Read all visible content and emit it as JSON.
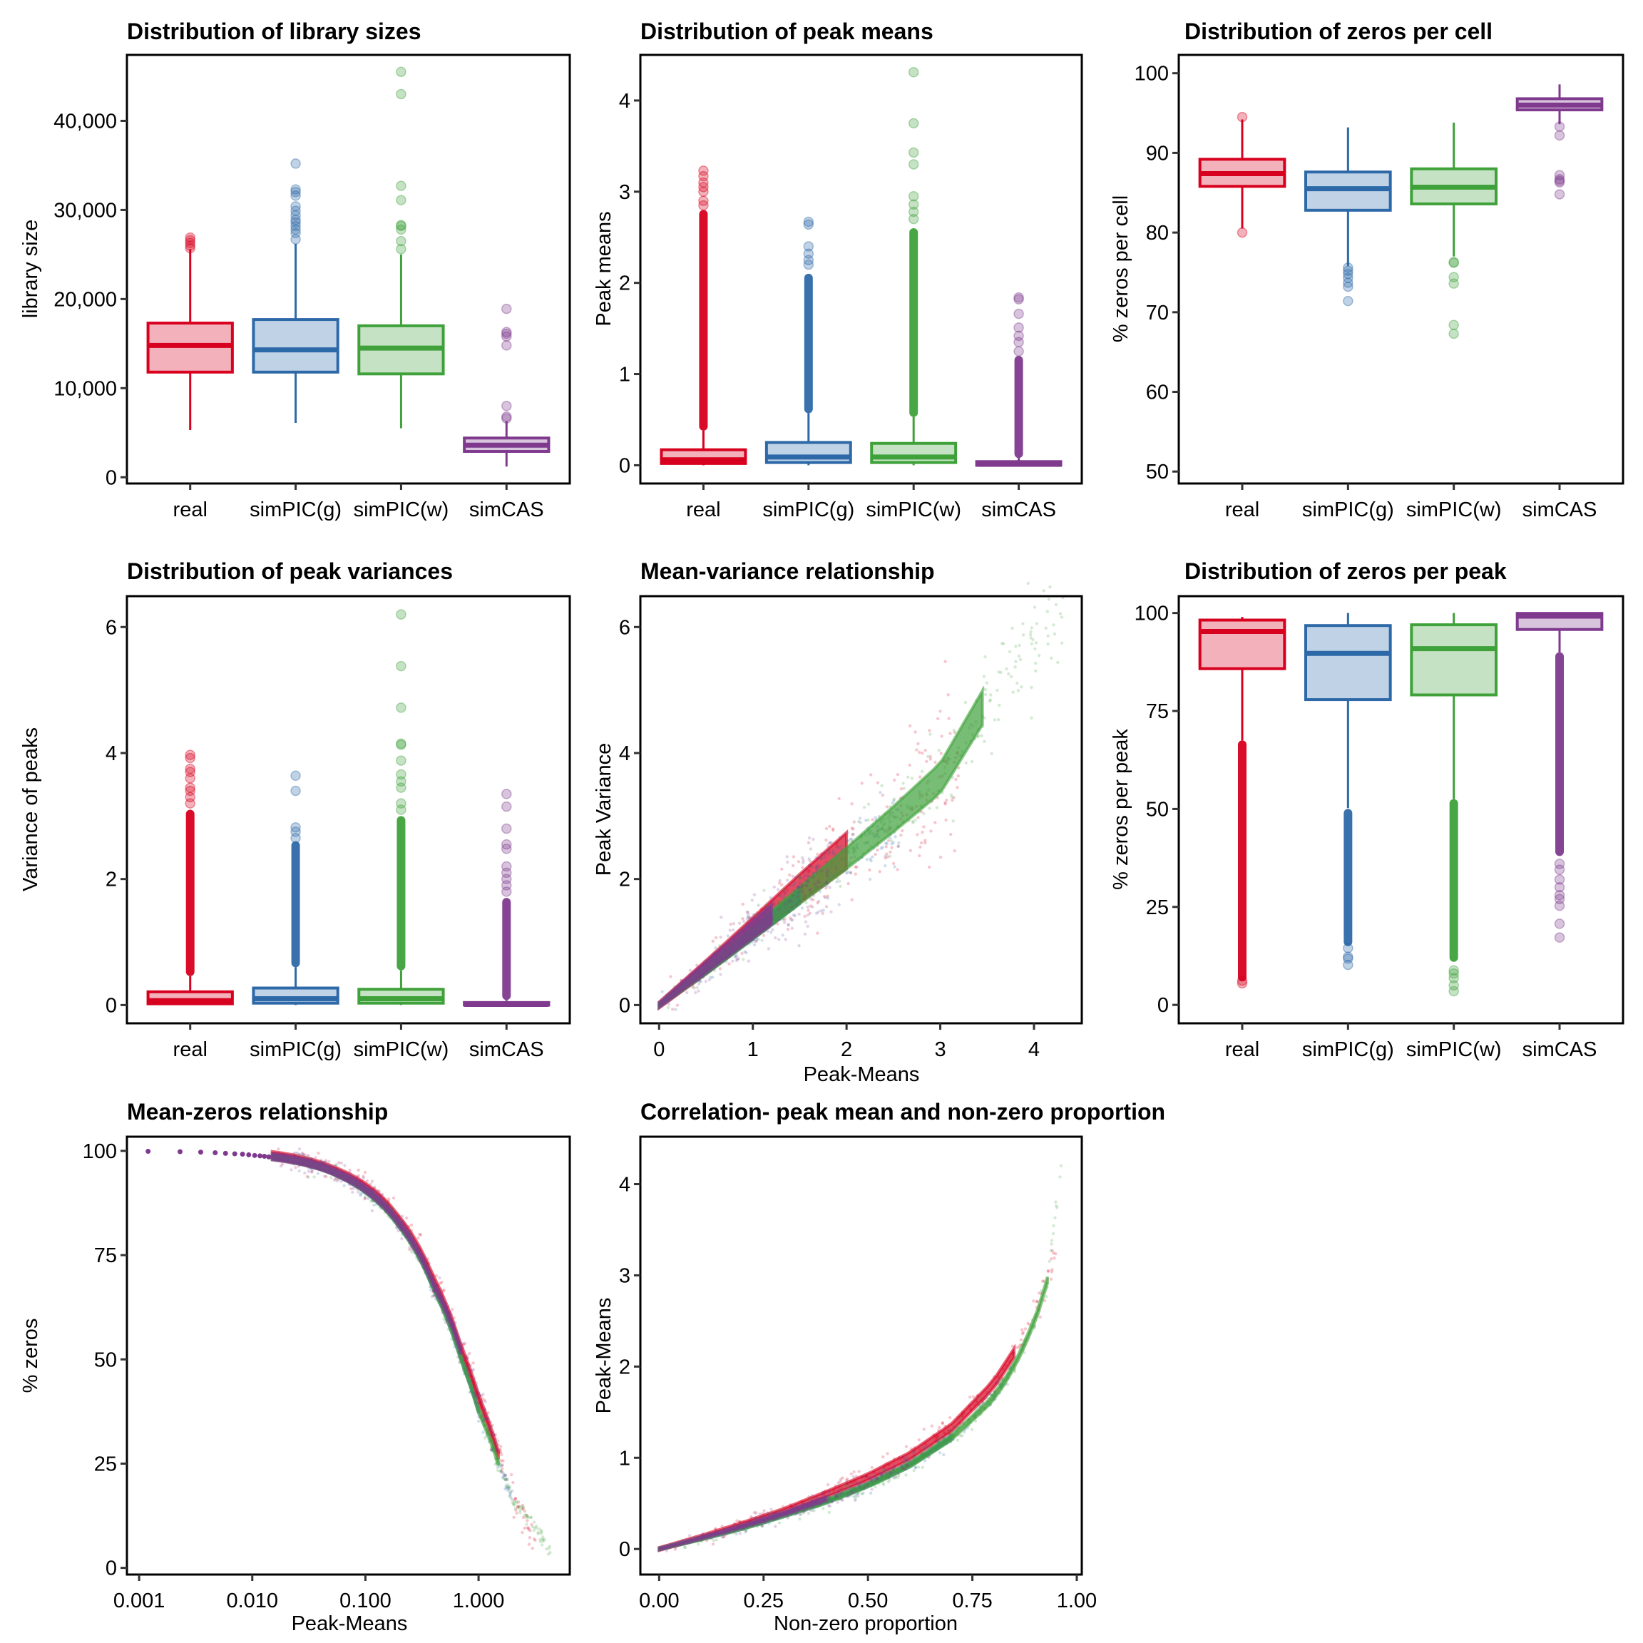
{
  "figure": {
    "colors": {
      "real": "#D7001F",
      "simPIC(g)": "#2D69A8",
      "simPIC(w)": "#3FA13A",
      "simCAS": "#7F3A8E"
    }
  },
  "chart_data": [
    {
      "id": "library-sizes",
      "type": "box",
      "title": "Distribution of library sizes",
      "xlabel": "",
      "ylabel": "library size",
      "categories": [
        "real",
        "simPIC(g)",
        "simPIC(w)",
        "simCAS"
      ],
      "yticks": [
        0,
        10000,
        20000,
        30000,
        40000
      ],
      "ytick_labels": [
        "0",
        "10,000",
        "20,000",
        "30,000",
        "40,000"
      ],
      "ylim": [
        -700,
        47400
      ],
      "boxes": [
        {
          "category": "real",
          "lower_whisker": 5300,
          "q1": 11800,
          "median": 14800,
          "q3": 17300,
          "upper_whisker": 25600,
          "outliers": [
            25700,
            26000,
            26300,
            26600,
            26900
          ]
        },
        {
          "category": "simPIC(g)",
          "lower_whisker": 6100,
          "q1": 11800,
          "median": 14300,
          "q3": 17700,
          "upper_whisker": 26200,
          "outliers": [
            26700,
            27400,
            27800,
            28200,
            28600,
            28900,
            29400,
            29900,
            30400,
            31600,
            32000,
            32300,
            35200
          ]
        },
        {
          "category": "simPIC(w)",
          "lower_whisker": 5500,
          "q1": 11600,
          "median": 14500,
          "q3": 17000,
          "upper_whisker": 25000,
          "outliers": [
            25600,
            26500,
            27800,
            28200,
            28300,
            31100,
            32700,
            43000,
            45500
          ]
        },
        {
          "category": "simCAS",
          "lower_whisker": 1200,
          "q1": 2900,
          "median": 3600,
          "q3": 4400,
          "upper_whisker": 6300,
          "outliers": [
            6600,
            6800,
            8000,
            14800,
            15800,
            16100,
            16300,
            18900
          ]
        }
      ]
    },
    {
      "id": "peak-means",
      "type": "box",
      "title": "Distribution of peak means",
      "xlabel": "",
      "ylabel": "Peak means",
      "categories": [
        "real",
        "simPIC(g)",
        "simPIC(w)",
        "simCAS"
      ],
      "yticks": [
        0,
        1,
        2,
        3,
        4
      ],
      "ytick_labels": [
        "0",
        "1",
        "2",
        "3",
        "4"
      ],
      "ylim": [
        -0.2,
        4.5
      ],
      "boxes": [
        {
          "category": "real",
          "lower_whisker": 0.0,
          "q1": 0.02,
          "median": 0.06,
          "q3": 0.17,
          "upper_whisker": 0.38,
          "outlier_range": [
            0.38,
            2.8
          ],
          "outliers": [
            2.85,
            2.9,
            3.0,
            3.05,
            3.1,
            3.17,
            3.23
          ]
        },
        {
          "category": "simPIC(g)",
          "lower_whisker": 0.0,
          "q1": 0.03,
          "median": 0.09,
          "q3": 0.25,
          "upper_whisker": 0.57,
          "outlier_range": [
            0.57,
            2.1
          ],
          "outliers": [
            2.2,
            2.25,
            2.32,
            2.4,
            2.64,
            2.67
          ]
        },
        {
          "category": "simPIC(w)",
          "lower_whisker": 0.0,
          "q1": 0.03,
          "median": 0.09,
          "q3": 0.24,
          "upper_whisker": 0.53,
          "outlier_range": [
            0.53,
            2.6
          ],
          "outliers": [
            2.7,
            2.78,
            2.86,
            2.95,
            3.3,
            3.43,
            3.75,
            4.31
          ]
        },
        {
          "category": "simCAS",
          "lower_whisker": 0.0,
          "q1": 0.0,
          "median": 0.01,
          "q3": 0.04,
          "upper_whisker": 0.08,
          "outlier_range": [
            0.08,
            1.2
          ],
          "outliers": [
            1.25,
            1.35,
            1.42,
            1.51,
            1.66,
            1.82,
            1.84
          ]
        }
      ]
    },
    {
      "id": "zeros-per-cell",
      "type": "box",
      "title": "Distribution of zeros per cell",
      "xlabel": "",
      "ylabel": "% zeros per cell",
      "categories": [
        "real",
        "simPIC(g)",
        "simPIC(w)",
        "simCAS"
      ],
      "yticks": [
        50,
        60,
        70,
        80,
        90,
        100
      ],
      "ytick_labels": [
        "50",
        "60",
        "70",
        "80",
        "90",
        "100"
      ],
      "ylim": [
        48.5,
        102.3
      ],
      "boxes": [
        {
          "category": "real",
          "lower_whisker": 80.5,
          "q1": 85.8,
          "median": 87.4,
          "q3": 89.2,
          "upper_whisker": 94.2,
          "outliers": [
            80.0,
            94.5
          ]
        },
        {
          "category": "simPIC(g)",
          "lower_whisker": 75.8,
          "q1": 82.8,
          "median": 85.5,
          "q3": 87.6,
          "upper_whisker": 93.2,
          "outliers": [
            75.6,
            75.2,
            74.8,
            74.3,
            73.7,
            73.2,
            71.4
          ]
        },
        {
          "category": "simPIC(w)",
          "lower_whisker": 77.0,
          "q1": 83.6,
          "median": 85.7,
          "q3": 88.0,
          "upper_whisker": 93.8,
          "outliers": [
            76.3,
            76.2,
            74.4,
            73.6,
            68.4,
            67.3
          ]
        },
        {
          "category": "simCAS",
          "lower_whisker": 93.6,
          "q1": 95.4,
          "median": 96.0,
          "q3": 96.8,
          "upper_whisker": 98.6,
          "outliers": [
            93.3,
            92.2,
            87.2,
            86.7,
            86.5,
            86.3,
            84.8
          ]
        }
      ]
    },
    {
      "id": "peak-variances",
      "type": "box",
      "title": "Distribution of peak variances",
      "xlabel": "",
      "ylabel": "Variance of peaks",
      "categories": [
        "real",
        "simPIC(g)",
        "simPIC(w)",
        "simCAS"
      ],
      "yticks": [
        0,
        2,
        4,
        6
      ],
      "ytick_labels": [
        "0",
        "2",
        "4",
        "6"
      ],
      "ylim": [
        -0.29,
        6.49
      ],
      "boxes": [
        {
          "category": "real",
          "lower_whisker": 0.0,
          "q1": 0.02,
          "median": 0.07,
          "q3": 0.21,
          "upper_whisker": 0.46,
          "outlier_range": [
            0.46,
            3.1
          ],
          "outliers": [
            3.2,
            3.3,
            3.4,
            3.45,
            3.6,
            3.7,
            3.75,
            3.92,
            3.97
          ]
        },
        {
          "category": "simPIC(g)",
          "lower_whisker": 0.0,
          "q1": 0.03,
          "median": 0.1,
          "q3": 0.27,
          "upper_whisker": 0.6,
          "outlier_range": [
            0.6,
            2.6
          ],
          "outliers": [
            2.65,
            2.75,
            2.82,
            3.4,
            3.64
          ]
        },
        {
          "category": "simPIC(w)",
          "lower_whisker": 0.0,
          "q1": 0.03,
          "median": 0.1,
          "q3": 0.25,
          "upper_whisker": 0.55,
          "outlier_range": [
            0.55,
            3.0
          ],
          "outliers": [
            3.1,
            3.2,
            3.45,
            3.55,
            3.66,
            3.88,
            4.13,
            4.15,
            4.72,
            5.38,
            6.2
          ]
        },
        {
          "category": "simCAS",
          "lower_whisker": 0.0,
          "q1": 0.0,
          "median": 0.01,
          "q3": 0.04,
          "upper_whisker": 0.08,
          "outlier_range": [
            0.08,
            1.7
          ],
          "outliers": [
            1.8,
            1.9,
            2.0,
            2.1,
            2.2,
            2.48,
            2.55,
            2.8,
            3.15,
            3.35
          ]
        }
      ]
    },
    {
      "id": "mean-variance",
      "type": "scatter",
      "title": "Mean-variance relationship",
      "xlabel": "Peak-Means",
      "ylabel": "Peak Variance",
      "xticks": [
        0,
        1,
        2,
        3,
        4
      ],
      "xtick_labels": [
        "0",
        "1",
        "2",
        "3",
        "4"
      ],
      "yticks": [
        0,
        2,
        4,
        6
      ],
      "ytick_labels": [
        "0",
        "2",
        "4",
        "6"
      ],
      "xlim": [
        -0.2,
        4.51
      ],
      "ylim": [
        -0.29,
        6.49
      ],
      "series": [
        {
          "name": "real",
          "trend_x": [
            0,
            0.5,
            1,
            1.5,
            2,
            2.5,
            3.2
          ],
          "trend_y": [
            0,
            0.6,
            1.22,
            1.85,
            2.45,
            3.05,
            3.9
          ],
          "spread": 0.12
        },
        {
          "name": "simPIC(g)",
          "trend_x": [
            0,
            0.5,
            1,
            1.5,
            2,
            2.6
          ],
          "trend_y": [
            0,
            0.55,
            1.13,
            1.72,
            2.3,
            2.95
          ],
          "spread": 0.06
        },
        {
          "name": "simPIC(w)",
          "trend_x": [
            0,
            0.5,
            1,
            1.5,
            2,
            2.5,
            3,
            3.45,
            3.75,
            4.31
          ],
          "trend_y": [
            0,
            0.55,
            1.14,
            1.74,
            2.33,
            2.95,
            3.6,
            4.72,
            5.38,
            6.2
          ],
          "spread": 0.07
        },
        {
          "name": "simCAS",
          "trend_x": [
            0,
            0.3,
            0.6,
            0.9,
            1.2,
            1.5,
            1.84
          ],
          "trend_y": [
            0,
            0.36,
            0.72,
            1.08,
            1.44,
            1.8,
            2.2
          ],
          "spread": 0.1
        }
      ]
    },
    {
      "id": "zeros-per-peak",
      "type": "box",
      "title": "Distribution of zeros per peak",
      "xlabel": "",
      "ylabel": "% zeros per peak",
      "categories": [
        "real",
        "simPIC(g)",
        "simPIC(w)",
        "simCAS"
      ],
      "yticks": [
        0,
        25,
        50,
        75,
        100
      ],
      "ytick_labels": [
        "0",
        "25",
        "50",
        "75",
        "100"
      ],
      "ylim": [
        -4.7,
        104.3
      ],
      "boxes": [
        {
          "category": "real",
          "lower_whisker": 67.5,
          "q1": 85.8,
          "median": 95.3,
          "q3": 98.2,
          "upper_whisker": 99.0,
          "outlier_range": [
            6.0,
            67.5
          ],
          "outliers": [
            5.5,
            6.2
          ]
        },
        {
          "category": "simPIC(g)",
          "lower_whisker": 50.2,
          "q1": 77.9,
          "median": 89.7,
          "q3": 96.8,
          "upper_whisker": 100,
          "outlier_range": [
            15.0,
            50.0
          ],
          "outliers": [
            14.5,
            12.3,
            11.8,
            10.2
          ]
        },
        {
          "category": "simPIC(w)",
          "lower_whisker": 52.5,
          "q1": 79.1,
          "median": 90.9,
          "q3": 97.0,
          "upper_whisker": 100,
          "outlier_range": [
            11.0,
            52.5
          ],
          "outliers": [
            8.8,
            8.0,
            6.8,
            5.0,
            3.5
          ]
        },
        {
          "category": "simCAS",
          "lower_whisker": 90.0,
          "q1": 95.8,
          "median": 99.2,
          "q3": 99.9,
          "upper_whisker": 100,
          "outlier_range": [
            38.0,
            90.0
          ],
          "outliers": [
            36.0,
            34.5,
            32.0,
            30.0,
            28.0,
            27.0,
            25.3,
            20.7,
            17.2
          ]
        }
      ]
    },
    {
      "id": "mean-zeros",
      "type": "scatter",
      "title": "Mean-zeros relationship",
      "xlabel": "Peak-Means",
      "ylabel": "% zeros",
      "xscale": "log10",
      "xticks": [
        0.001,
        0.01,
        0.1,
        1
      ],
      "xtick_labels": [
        "0.001",
        "0.010",
        "0.100",
        "1.000"
      ],
      "yticks": [
        0,
        25,
        50,
        75,
        100
      ],
      "ytick_labels": [
        "0",
        "25",
        "50",
        "75",
        "100"
      ],
      "xlim": [
        0.00078,
        6.4
      ],
      "ylim": [
        -1.6,
        103.4
      ],
      "discrete_points": {
        "series": "simCAS",
        "x": [
          0.0012,
          0.0023,
          0.0035,
          0.0047,
          0.0058,
          0.007,
          0.0082,
          0.0093,
          0.0105,
          0.0117,
          0.0128,
          0.014
        ],
        "y": [
          99.9,
          99.8,
          99.7,
          99.55,
          99.4,
          99.3,
          99.2,
          99.05,
          98.9,
          98.8,
          98.7,
          98.55
        ]
      },
      "series": [
        {
          "name": "real",
          "trend_x": [
            0.015,
            0.03,
            0.06,
            0.1,
            0.2,
            0.4,
            0.7,
            1.0,
            1.5,
            2.2,
            3.2
          ],
          "trend_y": [
            98.9,
            97.4,
            94.6,
            91.3,
            83.3,
            69.0,
            52.5,
            40.5,
            27.0,
            14.5,
            6.0
          ],
          "spread": 1.2
        },
        {
          "name": "simPIC(g)",
          "trend_x": [
            0.015,
            0.03,
            0.06,
            0.1,
            0.2,
            0.4,
            0.7,
            1.0,
            1.5,
            2.0
          ],
          "trend_y": [
            98.5,
            97.0,
            94.0,
            90.4,
            82.0,
            67.0,
            50.0,
            37.5,
            25.0,
            16.0
          ],
          "spread": 0.6
        },
        {
          "name": "simPIC(w)",
          "trend_x": [
            0.015,
            0.03,
            0.06,
            0.1,
            0.2,
            0.4,
            0.7,
            1.0,
            1.5,
            2.0,
            4.3
          ],
          "trend_y": [
            98.5,
            97.0,
            94.0,
            90.4,
            82.0,
            67.0,
            50.0,
            37.5,
            25.0,
            16.0,
            3.5
          ],
          "spread": 0.6
        },
        {
          "name": "simCAS",
          "trend_x": [
            0.015,
            0.03,
            0.06,
            0.1,
            0.2,
            0.4,
            0.7,
            1.0,
            1.5
          ],
          "trend_y": [
            98.6,
            97.2,
            94.3,
            90.8,
            82.6,
            68.0,
            52.0,
            40.0,
            27.0
          ],
          "spread": 1.0
        }
      ]
    },
    {
      "id": "mean-nonzero-correlation",
      "type": "scatter",
      "title": "Correlation- peak mean and non-zero proportion",
      "xlabel": "Non-zero proportion",
      "ylabel": "Peak-Means",
      "xticks": [
        0,
        0.25,
        0.5,
        0.75,
        1
      ],
      "xtick_labels": [
        "0.00",
        "0.25",
        "0.50",
        "0.75",
        "1.00"
      ],
      "yticks": [
        0,
        1,
        2,
        3,
        4
      ],
      "ytick_labels": [
        "0",
        "1",
        "2",
        "3",
        "4"
      ],
      "xlim": [
        -0.045,
        1.012
      ],
      "ylim": [
        -0.28,
        4.52
      ],
      "series": [
        {
          "name": "real",
          "trend_x": [
            0,
            0.1,
            0.2,
            0.3,
            0.4,
            0.5,
            0.6,
            0.7,
            0.8,
            0.85,
            0.9,
            0.95
          ],
          "trend_y": [
            0,
            0.13,
            0.27,
            0.42,
            0.6,
            0.79,
            1.02,
            1.33,
            1.8,
            2.15,
            2.6,
            3.2
          ],
          "spread": 0.04
        },
        {
          "name": "simPIC(g)",
          "trend_x": [
            0,
            0.1,
            0.2,
            0.3,
            0.4,
            0.5,
            0.6,
            0.7,
            0.8,
            0.85
          ],
          "trend_y": [
            0,
            0.11,
            0.23,
            0.37,
            0.52,
            0.7,
            0.92,
            1.22,
            1.65,
            2.0
          ],
          "spread": 0.02
        },
        {
          "name": "simPIC(w)",
          "trend_x": [
            0,
            0.1,
            0.2,
            0.3,
            0.4,
            0.5,
            0.6,
            0.7,
            0.8,
            0.85,
            0.9,
            0.93,
            0.95,
            0.965
          ],
          "trend_y": [
            0,
            0.11,
            0.23,
            0.37,
            0.52,
            0.7,
            0.92,
            1.22,
            1.65,
            2.0,
            2.5,
            2.95,
            3.75,
            4.3
          ],
          "spread": 0.025
        },
        {
          "name": "simCAS",
          "trend_x": [
            0,
            0.1,
            0.2,
            0.3,
            0.4,
            0.5,
            0.6
          ],
          "trend_y": [
            0,
            0.12,
            0.25,
            0.39,
            0.55,
            0.74,
            0.96
          ],
          "spread": 0.03
        }
      ]
    }
  ]
}
